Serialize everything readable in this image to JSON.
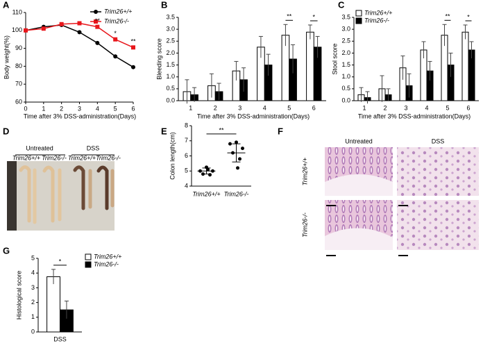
{
  "panel_labels": [
    "A",
    "B",
    "C",
    "D",
    "E",
    "F",
    "G"
  ],
  "chart_data": [
    {
      "type": "line",
      "xlabel": "Time after 3% DSS-administration(Days)",
      "ylabel": "Body weight(%)",
      "x": [
        0,
        1,
        2,
        3,
        4,
        5,
        6
      ],
      "xlim": [
        0,
        6
      ],
      "xticks": [
        0,
        1,
        2,
        3,
        4,
        5,
        6
      ],
      "ylim": [
        60,
        110
      ],
      "yticks": [
        60,
        70,
        80,
        90,
        100,
        110
      ],
      "legend": "upper-right",
      "series": [
        {
          "name": "Trim26+/+",
          "color": "#000000",
          "marker": "circle",
          "values": [
            100,
            102,
            103,
            99,
            93,
            85.5,
            79.5
          ]
        },
        {
          "name": "Trim26-/-",
          "color": "#e8161b",
          "marker": "square",
          "values": [
            100,
            101,
            103.5,
            104,
            102,
            95,
            90.5
          ]
        }
      ],
      "annotations": [
        {
          "x": 4,
          "text": "**"
        },
        {
          "x": 5,
          "text": "*"
        },
        {
          "x": 6,
          "text": "**"
        }
      ]
    },
    {
      "type": "bar",
      "xlabel": "Time after 3% DSS-administration(Days)",
      "ylabel": "Bleeding score",
      "categories": [
        "1",
        "2",
        "3",
        "4",
        "5",
        "6"
      ],
      "ylim": [
        0,
        3.5
      ],
      "yticks": [
        {
          "value": 0,
          "label": "0.0"
        },
        0.5,
        {
          "value": 1,
          "label": "1.0"
        },
        1.5,
        {
          "value": 2,
          "label": "2.0"
        },
        2.5,
        {
          "value": 3,
          "label": "3.0"
        },
        3.5
      ],
      "series": [
        {
          "name": "Trim26+/+",
          "color": "#ffffff",
          "values": [
            0.38,
            0.63,
            1.25,
            2.25,
            2.75,
            2.88
          ],
          "errors": [
            0.5,
            0.5,
            0.4,
            0.45,
            0.45,
            0.3
          ]
        },
        {
          "name": "Trim26-/-",
          "color": "#000000",
          "values": [
            0.25,
            0.38,
            0.88,
            1.5,
            1.75,
            2.25
          ],
          "errors": [
            0.3,
            0.35,
            0.5,
            0.45,
            0.6,
            0.45
          ]
        }
      ],
      "annotations": [
        {
          "category": "5",
          "text": "**"
        },
        {
          "category": "6",
          "text": "*"
        }
      ]
    },
    {
      "type": "bar",
      "xlabel": "Time after 3% DSS-administration(Days)",
      "ylabel": "Stool score",
      "categories": [
        "1",
        "2",
        "3",
        "4",
        "5",
        "6"
      ],
      "ylim": [
        0,
        3.5
      ],
      "yticks": [
        {
          "value": 0,
          "label": "0.0"
        },
        0.5,
        {
          "value": 1,
          "label": "1.0"
        },
        1.5,
        {
          "value": 2,
          "label": "2.0"
        },
        2.5,
        {
          "value": 3,
          "label": "3.0"
        },
        3.5
      ],
      "legend": "upper-left",
      "series": [
        {
          "name": "Trim26+/+",
          "color": "#ffffff",
          "values": [
            0.25,
            0.5,
            1.38,
            2.13,
            2.75,
            2.88
          ],
          "errors": [
            0.3,
            0.55,
            0.5,
            0.35,
            0.45,
            0.3
          ]
        },
        {
          "name": "Trim26-/-",
          "color": "#000000",
          "values": [
            0.13,
            0.25,
            0.63,
            1.25,
            1.5,
            2.13
          ],
          "errors": [
            0.25,
            0.25,
            0.5,
            0.4,
            0.5,
            0.35
          ]
        }
      ],
      "annotations": [
        {
          "category": "5",
          "text": "**"
        },
        {
          "category": "6",
          "text": "*"
        }
      ]
    },
    {
      "type": "dot",
      "ylabel": "Colon length(cm)",
      "categories": [
        "Trim26+/+",
        "Trim26-/-"
      ],
      "ylim": [
        4,
        8
      ],
      "yticks": [
        4,
        5,
        6,
        7,
        8
      ],
      "groups": [
        {
          "values": [
            5.25,
            5.0,
            5.0,
            4.8,
            4.75,
            5.1
          ],
          "mean": 5.0,
          "sd": 0.2
        },
        {
          "values": [
            6.9,
            6.8,
            6.5,
            6.2,
            5.8,
            5.2
          ],
          "mean": 6.2,
          "sd": 0.6
        }
      ],
      "annotations": [
        {
          "text": "**"
        }
      ]
    },
    {
      "type": "bar",
      "ylabel": "Histological score",
      "categories": [
        "DSS"
      ],
      "ylim": [
        0,
        5
      ],
      "yticks": [
        0,
        1,
        2,
        3,
        4,
        5
      ],
      "legend": "right",
      "series": [
        {
          "name": "Trim26+/+",
          "color": "#ffffff",
          "values": [
            3.75
          ],
          "errors": [
            0.5
          ]
        },
        {
          "name": "Trim26-/-",
          "color": "#000000",
          "values": [
            1.5
          ],
          "errors": [
            0.6
          ]
        }
      ],
      "annotations": [
        {
          "category": "DSS",
          "text": "*"
        }
      ]
    }
  ],
  "images": [
    {
      "column_labels": [
        "Untreated",
        "DSS"
      ],
      "lane_labels": [
        "Trim26+/+",
        "Trim26-/-",
        "Trim26+/+",
        "Trim26-/-"
      ]
    },
    {
      "column_labels": [
        "Untreated",
        "DSS"
      ],
      "row_labels": [
        "Trim26+/+",
        "Trim26-/-"
      ]
    }
  ]
}
